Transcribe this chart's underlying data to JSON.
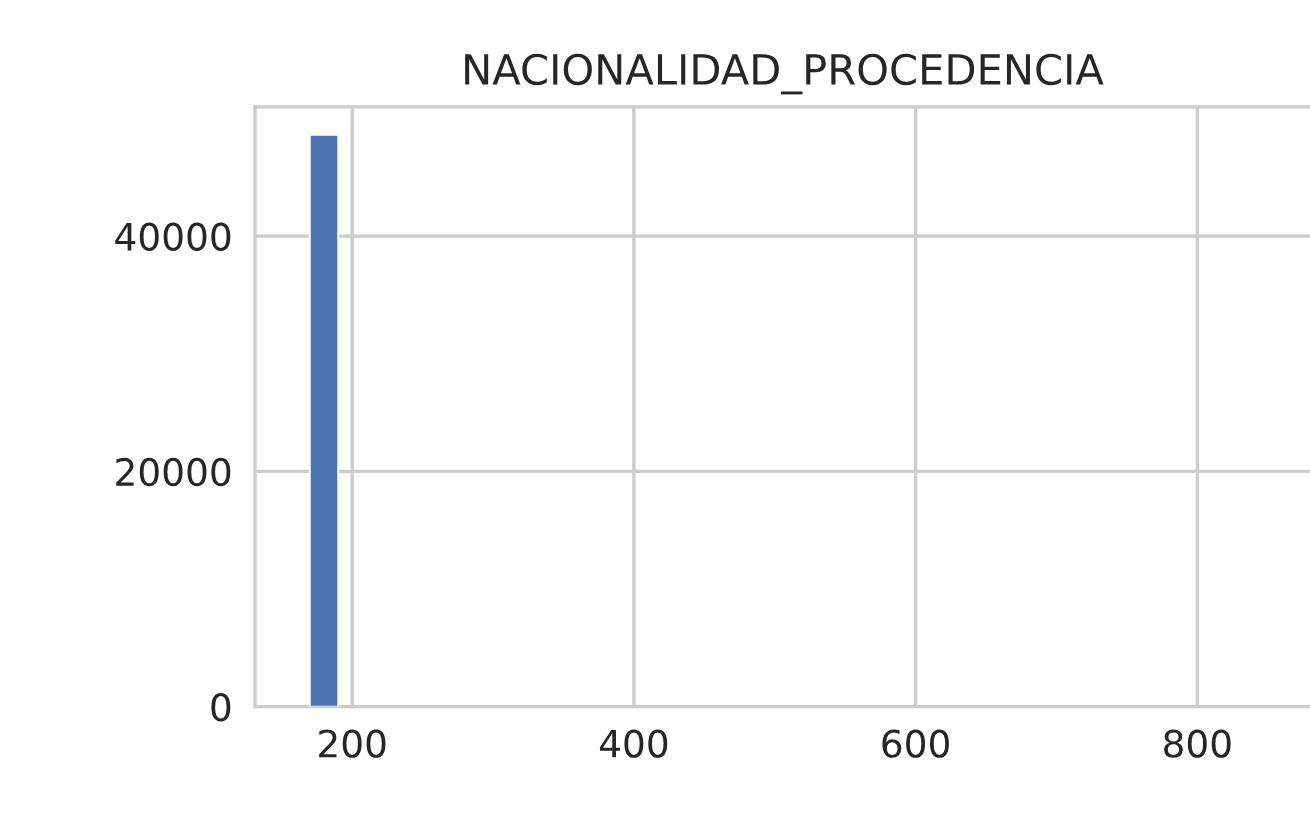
{
  "chart_data": {
    "type": "histogram",
    "title": "NACIONALIDAD_PROCEDENCIA",
    "bins": [
      170,
      190
    ],
    "values": [
      48600
    ],
    "color": "#4c72b0",
    "xlim": [
      131,
      880
    ],
    "xticks": [
      200,
      400,
      600,
      800
    ],
    "ylim": [
      0,
      51000
    ],
    "yticks": [
      0,
      20000,
      40000
    ],
    "grid": true,
    "legend": false
  }
}
